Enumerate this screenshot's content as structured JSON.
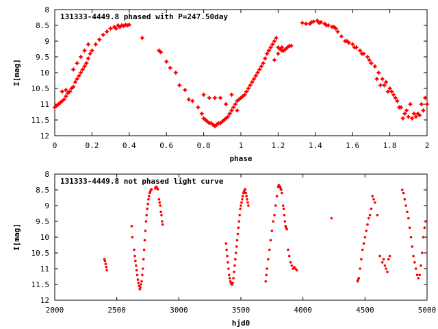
{
  "chart_data": [
    {
      "type": "scatter",
      "title": "131333-4449.8 phased with P=247.50day",
      "xlabel": "phase",
      "ylabel": "I[mag]",
      "xlim": [
        0,
        2
      ],
      "ylim": [
        12,
        8
      ],
      "y_inverted": true,
      "xticks": [
        "0",
        "0.2",
        "0.4",
        "0.6",
        "0.8",
        "1",
        "1.2",
        "1.4",
        "1.6",
        "1.8",
        "2"
      ],
      "yticks": [
        "8",
        "8.5",
        "9",
        "9.5",
        "10",
        "10.5",
        "11",
        "11.5",
        "12"
      ],
      "grid": false,
      "marker_color": "#ff0000",
      "marker": "star",
      "series": [
        {
          "x": [
            0.0,
            0.01,
            0.02,
            0.03,
            0.04,
            0.05,
            0.06,
            0.07,
            0.08,
            0.09,
            0.1,
            0.11,
            0.12,
            0.13,
            0.14,
            0.15,
            0.16,
            0.17,
            0.18,
            0.19,
            0.2,
            0.22,
            0.24,
            0.26,
            0.28,
            0.3,
            0.32,
            0.34,
            0.36,
            0.38,
            0.4,
            0.33,
            0.35,
            0.37,
            0.39,
            0.04,
            0.06,
            0.1,
            0.12,
            0.14,
            0.16,
            0.18,
            0.47,
            0.56,
            0.57,
            0.6,
            0.62,
            0.65,
            0.67,
            0.7,
            0.72,
            0.74,
            0.77,
            0.79,
            0.8,
            0.81,
            0.82,
            0.83,
            0.84,
            0.85,
            0.86,
            0.87,
            0.88,
            0.89,
            0.9,
            0.91,
            0.92,
            0.93,
            0.94,
            0.95,
            0.96,
            0.97,
            0.98,
            0.99,
            1.0,
            1.01,
            1.02,
            1.03,
            1.04,
            1.05,
            1.06,
            1.07,
            1.08,
            1.09,
            1.1,
            1.11,
            1.12,
            1.13,
            1.14,
            1.15,
            1.16,
            1.17,
            1.18,
            1.19,
            1.2,
            1.21,
            1.22,
            1.23,
            1.24,
            1.25,
            1.26,
            1.27,
            0.8,
            0.83,
            0.86,
            0.89,
            0.95,
            0.98,
            0.92,
            1.18,
            1.2,
            1.22,
            1.33,
            1.35,
            1.37,
            1.39,
            1.41,
            1.43,
            1.45,
            1.47,
            1.49,
            1.51,
            1.38,
            1.42,
            1.46,
            1.5,
            1.52,
            1.54,
            1.56,
            1.58,
            1.6,
            1.62,
            1.64,
            1.66,
            1.68,
            1.7,
            1.72,
            1.74,
            1.76,
            1.78,
            1.8,
            1.82,
            1.84,
            1.86,
            1.88,
            1.9,
            1.92,
            1.94,
            1.96,
            1.98,
            2.0,
            1.57,
            1.61,
            1.65,
            1.69,
            1.73,
            1.77,
            1.81,
            1.85,
            1.89,
            1.93,
            1.97,
            1.99,
            1.75,
            1.79,
            1.83,
            1.87,
            1.91,
            1.95
          ],
          "y": [
            11.1,
            11.05,
            11.0,
            10.95,
            10.9,
            10.85,
            10.75,
            10.65,
            10.6,
            10.5,
            10.45,
            10.3,
            10.2,
            10.1,
            10.0,
            9.9,
            9.8,
            9.7,
            9.55,
            9.4,
            9.3,
            9.1,
            8.95,
            8.8,
            8.7,
            8.6,
            8.55,
            8.5,
            8.5,
            8.48,
            8.48,
            8.6,
            8.55,
            8.52,
            8.5,
            10.6,
            10.55,
            9.9,
            9.7,
            9.5,
            9.3,
            9.1,
            8.9,
            9.3,
            9.35,
            9.65,
            9.85,
            10.0,
            10.4,
            10.55,
            10.85,
            10.9,
            11.1,
            11.3,
            11.45,
            11.5,
            11.55,
            11.6,
            11.6,
            11.65,
            11.7,
            11.65,
            11.6,
            11.6,
            11.55,
            11.5,
            11.45,
            11.4,
            11.3,
            11.2,
            11.1,
            11.0,
            10.9,
            10.85,
            10.8,
            10.75,
            10.7,
            10.6,
            10.5,
            10.4,
            10.3,
            10.2,
            10.1,
            10.0,
            9.9,
            9.8,
            9.7,
            9.55,
            9.4,
            9.3,
            9.2,
            9.1,
            9.0,
            8.9,
            9.2,
            9.25,
            9.3,
            9.3,
            9.25,
            9.2,
            9.15,
            9.15,
            10.7,
            10.8,
            10.8,
            10.8,
            10.7,
            11.2,
            11.0,
            9.6,
            9.4,
            9.2,
            8.42,
            8.45,
            8.45,
            8.38,
            8.35,
            8.4,
            8.45,
            8.5,
            8.55,
            8.6,
            8.4,
            8.42,
            8.5,
            8.55,
            8.7,
            8.85,
            9.0,
            9.05,
            9.1,
            9.2,
            9.3,
            9.4,
            9.5,
            9.7,
            9.8,
            10.0,
            10.2,
            10.3,
            10.5,
            10.7,
            10.9,
            11.1,
            11.3,
            11.4,
            11.45,
            11.4,
            11.35,
            11.2,
            11.0,
            9.0,
            9.2,
            9.4,
            9.6,
            10.2,
            10.4,
            10.6,
            11.1,
            11.2,
            11.3,
            11.0,
            10.8,
            10.4,
            10.6,
            10.8,
            11.45,
            11.0,
            11.3
          ]
        }
      ]
    },
    {
      "type": "scatter",
      "title": "131333-4449.8 not phased light curve",
      "xlabel": "hjd0",
      "ylabel": "I[mag]",
      "xlim": [
        2000,
        5000
      ],
      "ylim": [
        12,
        8
      ],
      "y_inverted": true,
      "xticks": [
        "2000",
        "2500",
        "3000",
        "3500",
        "4000",
        "4500",
        "5000"
      ],
      "yticks": [
        "8",
        "8.5",
        "9",
        "9.5",
        "10",
        "10.5",
        "11",
        "11.5",
        "12"
      ],
      "grid": false,
      "marker_color": "#ff0000",
      "marker": "dot",
      "series": [
        {
          "x": [
            2400,
            2405,
            2410,
            2415,
            2420,
            2620,
            2625,
            2640,
            2645,
            2650,
            2655,
            2660,
            2665,
            2670,
            2675,
            2680,
            2685,
            2690,
            2695,
            2700,
            2705,
            2710,
            2715,
            2720,
            2725,
            2730,
            2735,
            2740,
            2745,
            2750,
            2755,
            2760,
            2765,
            2770,
            2775,
            2780,
            2810,
            2815,
            2820,
            2825,
            2830,
            2840,
            2845,
            2850,
            2855,
            2860,
            2865,
            2870,
            3380,
            3385,
            3390,
            3395,
            3400,
            3405,
            3410,
            3415,
            3420,
            3425,
            3430,
            3435,
            3440,
            3445,
            3450,
            3455,
            3460,
            3465,
            3470,
            3475,
            3480,
            3485,
            3490,
            3495,
            3500,
            3505,
            3510,
            3515,
            3520,
            3525,
            3530,
            3535,
            3540,
            3545,
            3550,
            3555,
            3560,
            3700,
            3705,
            3710,
            3720,
            3730,
            3740,
            3750,
            3760,
            3770,
            3780,
            3790,
            3800,
            3805,
            3810,
            3815,
            3820,
            3825,
            3830,
            3840,
            3845,
            3850,
            3855,
            3860,
            3865,
            3870,
            3880,
            3890,
            3900,
            3910,
            3920,
            3930,
            3940,
            3950,
            4230,
            4440,
            4445,
            4450,
            4460,
            4470,
            4480,
            4490,
            4500,
            4510,
            4520,
            4530,
            4540,
            4550,
            4560,
            4570,
            4580,
            4600,
            4620,
            4640,
            4650,
            4660,
            4670,
            4680,
            4690,
            4700,
            4800,
            4810,
            4820,
            4830,
            4840,
            4850,
            4860,
            4870,
            4880,
            4890,
            4900,
            4910,
            4920,
            4930,
            4940,
            4950,
            4960,
            4970,
            4980,
            4990
          ],
          "y": [
            10.7,
            10.75,
            10.85,
            10.95,
            11.05,
            9.65,
            10.0,
            10.4,
            10.6,
            10.75,
            10.9,
            11.05,
            11.2,
            11.35,
            11.45,
            11.55,
            11.65,
            11.6,
            11.5,
            11.4,
            11.2,
            11.0,
            10.7,
            10.4,
            10.1,
            9.8,
            9.5,
            9.3,
            9.1,
            8.95,
            8.8,
            8.7,
            8.6,
            8.55,
            8.5,
            8.48,
            8.45,
            8.4,
            8.42,
            8.45,
            8.48,
            8.8,
            8.9,
            9.0,
            9.2,
            9.3,
            9.5,
            9.6,
            10.2,
            10.4,
            10.6,
            10.8,
            11.0,
            11.2,
            11.3,
            11.4,
            11.45,
            11.5,
            11.5,
            11.45,
            11.3,
            11.1,
            10.9,
            10.7,
            10.5,
            10.3,
            10.1,
            9.9,
            9.7,
            9.5,
            9.3,
            9.1,
            9.0,
            8.9,
            8.8,
            8.7,
            8.6,
            8.55,
            8.5,
            8.48,
            8.6,
            8.7,
            8.8,
            8.9,
            9.0,
            11.4,
            11.2,
            11.0,
            10.7,
            10.4,
            10.1,
            9.8,
            9.5,
            9.3,
            9.0,
            8.7,
            8.4,
            8.35,
            8.38,
            8.4,
            8.45,
            8.5,
            8.6,
            9.0,
            9.1,
            9.3,
            9.5,
            9.65,
            9.7,
            9.75,
            10.4,
            10.6,
            10.8,
            10.9,
            11.0,
            10.95,
            11.0,
            11.05,
            9.4,
            11.4,
            11.35,
            11.3,
            11.0,
            10.7,
            10.4,
            10.2,
            10.0,
            9.8,
            9.6,
            9.4,
            9.3,
            9.1,
            8.7,
            8.8,
            8.9,
            9.3,
            10.6,
            10.8,
            10.7,
            10.9,
            11.0,
            11.1,
            10.7,
            10.6,
            8.5,
            8.6,
            8.8,
            9.0,
            9.2,
            9.4,
            9.7,
            10.0,
            10.3,
            10.6,
            10.8,
            11.0,
            11.2,
            11.3,
            11.2,
            10.9,
            10.5,
            10.0,
            9.7,
            9.5
          ]
        }
      ]
    }
  ]
}
